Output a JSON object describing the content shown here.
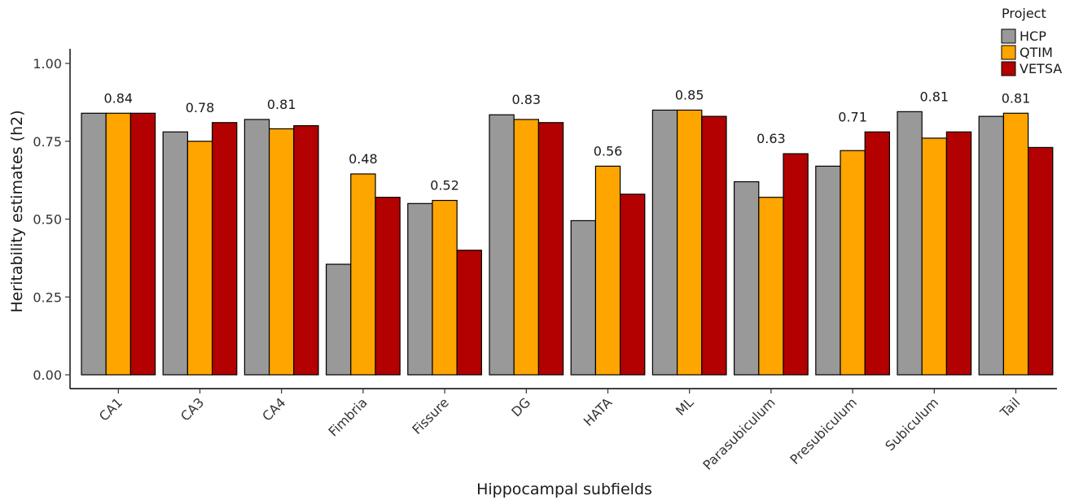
{
  "chart_data": {
    "type": "bar",
    "title": "",
    "xlabel": "Hippocampal subfields",
    "ylabel": "Heritability estimates (h2)",
    "ylim": [
      0,
      1.05
    ],
    "yticks": [
      "0.00",
      "0.25",
      "0.50",
      "0.75",
      "1.00"
    ],
    "ytick_values": [
      0,
      0.25,
      0.5,
      0.75,
      1.0
    ],
    "grid": false,
    "legend_position": "top-right",
    "legend_title": "Project",
    "categories": [
      "CA1",
      "CA3",
      "CA4",
      "Fimbria",
      "Fissure",
      "DG",
      "HATA",
      "ML",
      "Parasubiculum",
      "Presubiculum",
      "Subiculum",
      "Tail"
    ],
    "series": [
      {
        "name": "HCP",
        "color": "#999999",
        "values": [
          0.84,
          0.78,
          0.82,
          0.355,
          0.55,
          0.835,
          0.495,
          0.85,
          0.62,
          0.67,
          0.845,
          0.83
        ]
      },
      {
        "name": "QTIM",
        "color": "#ffa500",
        "values": [
          0.84,
          0.75,
          0.79,
          0.645,
          0.56,
          0.82,
          0.67,
          0.85,
          0.57,
          0.72,
          0.76,
          0.84
        ]
      },
      {
        "name": "VETSA",
        "color": "#b30000",
        "values": [
          0.84,
          0.81,
          0.8,
          0.57,
          0.4,
          0.81,
          0.58,
          0.83,
          0.71,
          0.78,
          0.78,
          0.73
        ]
      }
    ],
    "annotations": [
      "0.84",
      "0.78",
      "0.81",
      "0.48",
      "0.52",
      "0.83",
      "0.56",
      "0.85",
      "0.63",
      "0.71",
      "0.81",
      "0.81"
    ]
  }
}
